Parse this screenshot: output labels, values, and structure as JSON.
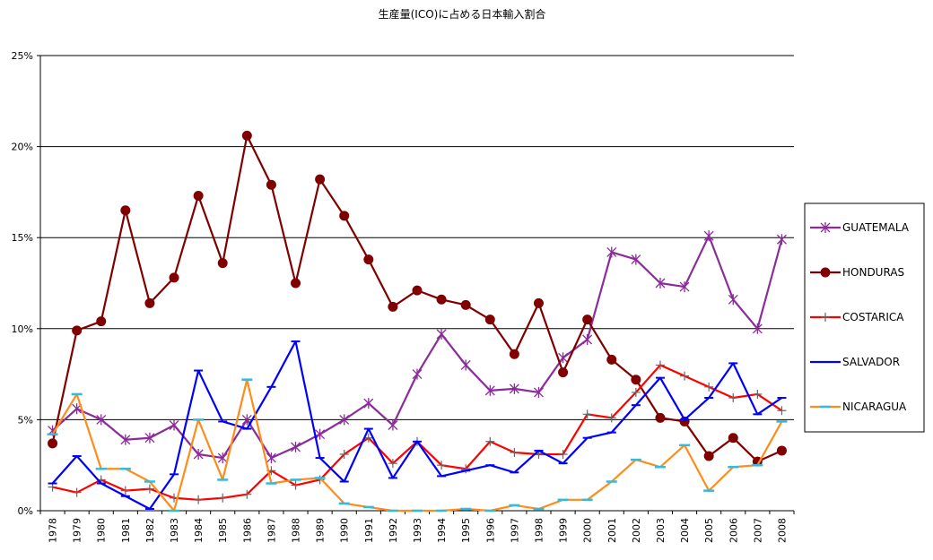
{
  "chart_data": {
    "type": "line",
    "title": "生産量(ICO)に占める日本輸入割合",
    "xlabel": "",
    "ylabel": "",
    "x": [
      "1978",
      "1979",
      "1980",
      "1981",
      "1982",
      "1983",
      "1984",
      "1985",
      "1986",
      "1987",
      "1988",
      "1989",
      "1990",
      "1991",
      "1992",
      "1993",
      "1994",
      "1995",
      "1996",
      "1997",
      "1998",
      "1999",
      "2000",
      "2001",
      "2002",
      "2003",
      "2004",
      "2005",
      "2006",
      "2007",
      "2008"
    ],
    "yticks": [
      "0%",
      "5%",
      "10%",
      "15%",
      "20%",
      "25%"
    ],
    "ylim": [
      0,
      25
    ],
    "grid": true,
    "legend": "right",
    "series": [
      {
        "name": "GUATEMALA",
        "color": "#8B2C9A",
        "marker": "star",
        "values": [
          4.4,
          5.6,
          5.0,
          3.9,
          4.0,
          4.7,
          3.1,
          2.9,
          5.0,
          2.9,
          3.5,
          4.2,
          5.0,
          5.9,
          4.7,
          7.5,
          9.7,
          8.0,
          6.6,
          6.7,
          6.5,
          8.4,
          9.4,
          14.2,
          13.8,
          12.5,
          12.3,
          15.1,
          11.6,
          10.0,
          14.9
        ]
      },
      {
        "name": "HONDURAS",
        "color": "#800000",
        "marker": "circle",
        "values": [
          3.7,
          9.9,
          10.4,
          16.5,
          11.4,
          12.8,
          17.3,
          13.6,
          20.6,
          17.9,
          12.5,
          18.2,
          16.2,
          13.8,
          11.2,
          12.1,
          11.6,
          11.3,
          10.5,
          8.6,
          11.4,
          7.6,
          10.5,
          8.3,
          7.2,
          5.1,
          4.9,
          3.0,
          4.0,
          2.7,
          3.3
        ]
      },
      {
        "name": "COSTARICA",
        "color": "#FF0000",
        "marker": "plus",
        "values": [
          1.3,
          1.0,
          1.7,
          1.1,
          1.2,
          0.7,
          0.6,
          0.7,
          0.9,
          2.2,
          1.4,
          1.7,
          3.1,
          4.0,
          2.6,
          3.8,
          2.5,
          2.3,
          3.8,
          3.2,
          3.1,
          3.1,
          5.3,
          5.1,
          6.5,
          8.0,
          7.4,
          6.8,
          6.2,
          6.4,
          5.5
        ]
      },
      {
        "name": "SALVADOR",
        "color": "#0000FF",
        "marker": "dash",
        "values": [
          1.5,
          3.0,
          1.5,
          0.8,
          0.1,
          2.0,
          7.7,
          4.9,
          4.5,
          6.8,
          9.3,
          2.9,
          1.6,
          4.5,
          1.8,
          3.8,
          1.9,
          2.2,
          2.5,
          2.1,
          3.3,
          2.6,
          4.0,
          4.3,
          5.8,
          7.3,
          5.0,
          6.2,
          8.1,
          5.3,
          6.2
        ]
      },
      {
        "name": "NICARAGUA",
        "color": "#FF8C1A",
        "marker": "dash-cyan",
        "values": [
          4.2,
          6.4,
          2.3,
          2.3,
          1.6,
          0.0,
          5.0,
          1.7,
          7.2,
          1.5,
          1.7,
          1.8,
          0.4,
          0.2,
          0.0,
          0.0,
          0.0,
          0.1,
          0.0,
          0.3,
          0.1,
          0.6,
          0.6,
          1.6,
          2.8,
          2.4,
          3.6,
          1.1,
          2.4,
          2.5,
          4.9
        ]
      }
    ]
  }
}
